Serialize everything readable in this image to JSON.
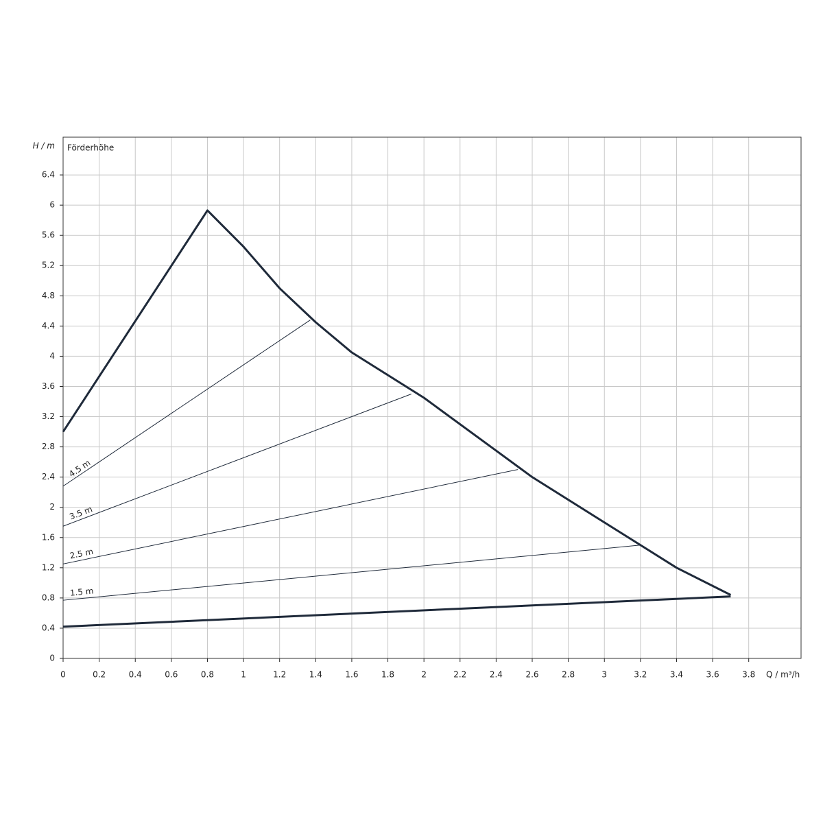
{
  "chart_data": {
    "type": "line",
    "y_axis_label": "H / m",
    "y_axis_title": "Förderhöhe",
    "x_axis_label": "Q / m³/h",
    "xlim": [
      0,
      4.09
    ],
    "ylim": [
      0,
      6.9
    ],
    "xticks": [
      0,
      0.2,
      0.4,
      0.6,
      0.8,
      1,
      1.2,
      1.4,
      1.6,
      1.8,
      2,
      2.2,
      2.4,
      2.6,
      2.8,
      3,
      3.2,
      3.4,
      3.6,
      3.8
    ],
    "yticks": [
      0,
      0.4,
      0.8,
      1.2,
      1.6,
      2,
      2.4,
      2.8,
      3.2,
      3.6,
      4,
      4.4,
      4.8,
      5.2,
      5.6,
      6,
      6.4
    ],
    "grid": true,
    "series": [
      {
        "color": "#1f2a3a",
        "line_width": 3,
        "x": [
          0,
          0.8,
          1.0,
          1.2,
          1.4,
          1.6,
          2.0,
          2.4,
          2.6,
          3.0,
          3.2,
          3.4,
          3.7
        ],
        "values": [
          3.0,
          5.93,
          5.45,
          4.9,
          4.45,
          4.05,
          3.45,
          2.75,
          2.4,
          1.8,
          1.5,
          1.2,
          0.84
        ]
      },
      {
        "color": "#1f2a3a",
        "line_width": 3,
        "x": [
          0,
          3.7
        ],
        "values": [
          0.42,
          0.82
        ]
      },
      {
        "name": "4.5 m",
        "color": "#1f2a3a",
        "line_width": 1,
        "x": [
          0,
          1.37
        ],
        "values": [
          2.28,
          4.48
        ]
      },
      {
        "name": "3.5 m",
        "color": "#1f2a3a",
        "line_width": 1,
        "x": [
          0,
          1.93
        ],
        "values": [
          1.75,
          3.5
        ]
      },
      {
        "name": "2.5 m",
        "color": "#1f2a3a",
        "line_width": 1,
        "x": [
          0,
          2.52
        ],
        "values": [
          1.25,
          2.5
        ]
      },
      {
        "name": "1.5 m",
        "color": "#1f2a3a",
        "line_width": 1,
        "x": [
          0,
          3.2
        ],
        "values": [
          0.77,
          1.5
        ]
      }
    ]
  }
}
